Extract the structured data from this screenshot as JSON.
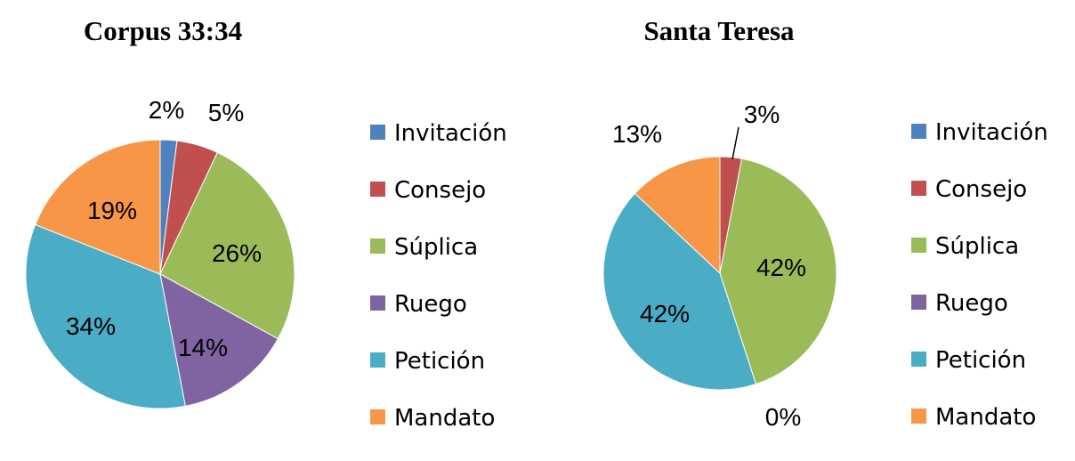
{
  "chart_data": [
    {
      "type": "pie",
      "title": "Corpus 33:34",
      "categories": [
        "Invitación",
        "Consejo",
        "Súplica",
        "Ruego",
        "Petición",
        "Mandato"
      ],
      "values": [
        2,
        5,
        26,
        14,
        34,
        19
      ],
      "labels": [
        "2%",
        "5%",
        "26%",
        "14%",
        "34%",
        "19%"
      ],
      "colors": [
        "#4F81BD",
        "#C0504D",
        "#9BBB59",
        "#8064A2",
        "#4BACC6",
        "#F79646"
      ],
      "legend": "right"
    },
    {
      "type": "pie",
      "title": "Santa Teresa",
      "categories": [
        "Invitación",
        "Consejo",
        "Súplica",
        "Ruego",
        "Petición",
        "Mandato"
      ],
      "values": [
        0,
        3,
        42,
        0,
        42,
        13
      ],
      "labels": [
        "",
        "3%",
        "42%",
        "0%",
        "42%",
        "13%"
      ],
      "colors": [
        "#4F81BD",
        "#C0504D",
        "#9BBB59",
        "#8064A2",
        "#4BACC6",
        "#F79646"
      ],
      "legend": "right"
    }
  ]
}
